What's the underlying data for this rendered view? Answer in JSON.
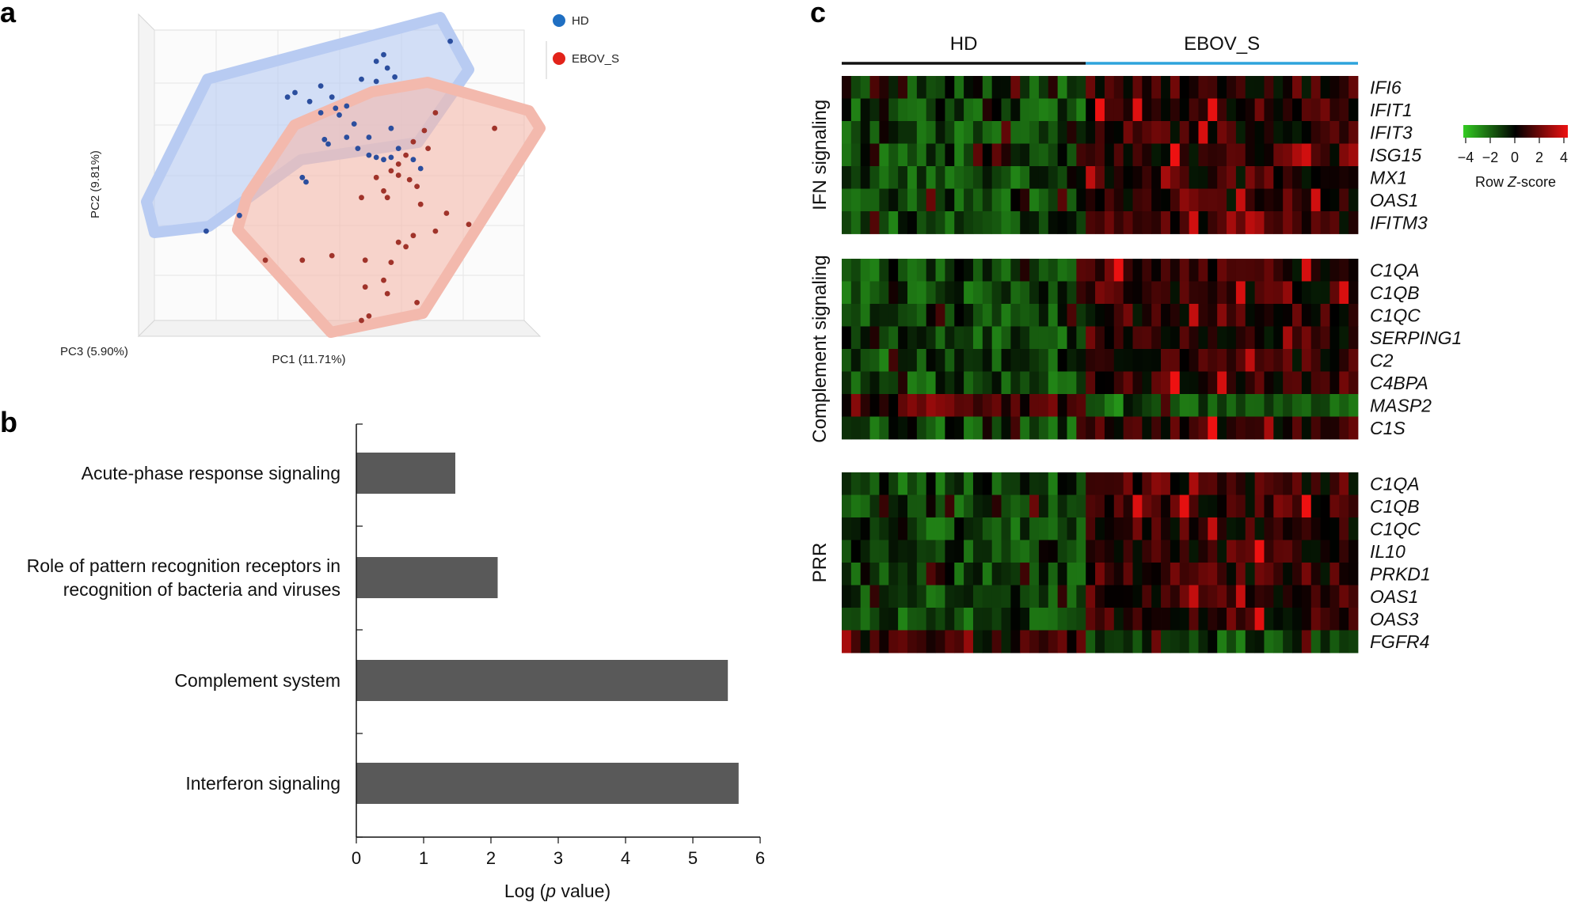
{
  "panel_labels": {
    "a": "a",
    "b": "b",
    "c": "c"
  },
  "pca": {
    "axis_pc1": "PC1 (11.71%)",
    "axis_pc2": "PC2 (9.81%)",
    "axis_pc3": "PC3 (5.90%)",
    "legend": [
      {
        "label": "HD",
        "color": "#1f6fc2"
      },
      {
        "label": "EBOV_S",
        "color": "#e2231a"
      }
    ],
    "colors": {
      "hd_hull": "#b8cbf2",
      "ebov_hull": "#f3b9ad",
      "hd_point": "#2b4e9e",
      "ebov_point": "#a0332a"
    }
  },
  "chart_data": [
    {
      "type": "scatter",
      "title": "",
      "xlabel": "PC1 (11.71%)",
      "ylabel": "PC2 (9.81%)",
      "zlabel": "PC3 (5.90%)",
      "series": [
        {
          "name": "HD",
          "points": [
            [
              0.8,
              0.95
            ],
            [
              0.62,
              0.89
            ],
            [
              0.6,
              0.86
            ],
            [
              0.63,
              0.83
            ],
            [
              0.65,
              0.79
            ],
            [
              0.6,
              0.77
            ],
            [
              0.56,
              0.78
            ],
            [
              0.45,
              0.75
            ],
            [
              0.42,
              0.68
            ],
            [
              0.38,
              0.72
            ],
            [
              0.36,
              0.7
            ],
            [
              0.48,
              0.7
            ],
            [
              0.45,
              0.63
            ],
            [
              0.49,
              0.65
            ],
            [
              0.5,
              0.62
            ],
            [
              0.52,
              0.66
            ],
            [
              0.54,
              0.58
            ],
            [
              0.58,
              0.52
            ],
            [
              0.64,
              0.56
            ],
            [
              0.52,
              0.52
            ],
            [
              0.47,
              0.49
            ],
            [
              0.46,
              0.51
            ],
            [
              0.55,
              0.47
            ],
            [
              0.58,
              0.44
            ],
            [
              0.6,
              0.43
            ],
            [
              0.62,
              0.42
            ],
            [
              0.64,
              0.43
            ],
            [
              0.7,
              0.42
            ],
            [
              0.66,
              0.47
            ],
            [
              0.72,
              0.38
            ],
            [
              0.4,
              0.34
            ],
            [
              0.41,
              0.32
            ],
            [
              0.23,
              0.17
            ],
            [
              0.14,
              0.1
            ]
          ]
        },
        {
          "name": "EBOV_S",
          "points": [
            [
              0.92,
              0.56
            ],
            [
              0.76,
              0.63
            ],
            [
              0.73,
              0.55
            ],
            [
              0.7,
              0.5
            ],
            [
              0.74,
              0.47
            ],
            [
              0.68,
              0.44
            ],
            [
              0.66,
              0.4
            ],
            [
              0.64,
              0.37
            ],
            [
              0.66,
              0.35
            ],
            [
              0.69,
              0.33
            ],
            [
              0.71,
              0.3
            ],
            [
              0.6,
              0.34
            ],
            [
              0.62,
              0.28
            ],
            [
              0.63,
              0.25
            ],
            [
              0.56,
              0.25
            ],
            [
              0.72,
              0.22
            ],
            [
              0.79,
              0.18
            ],
            [
              0.85,
              0.13
            ],
            [
              0.76,
              0.1
            ],
            [
              0.7,
              0.08
            ],
            [
              0.66,
              0.05
            ],
            [
              0.68,
              0.03
            ],
            [
              0.57,
              -0.03
            ],
            [
              0.48,
              -0.01
            ],
            [
              0.4,
              -0.03
            ],
            [
              0.3,
              -0.03
            ],
            [
              0.64,
              -0.04
            ],
            [
              0.62,
              -0.12
            ],
            [
              0.57,
              -0.15
            ],
            [
              0.63,
              -0.18
            ],
            [
              0.71,
              -0.22
            ],
            [
              0.58,
              -0.28
            ],
            [
              0.56,
              -0.3
            ]
          ]
        }
      ]
    },
    {
      "type": "bar",
      "orientation": "horizontal",
      "categories": [
        [
          "Acute-phase response signaling"
        ],
        [
          "Role of pattern recognition receptors in",
          "recognition of bacteria and viruses"
        ],
        [
          "Complement system"
        ],
        [
          "Interferon signaling"
        ]
      ],
      "values": [
        1.47,
        2.1,
        5.52,
        5.68
      ],
      "bar_color": "#595959",
      "xlabel_pre": "Log (",
      "xlabel_italic": "p",
      "xlabel_post": " value)",
      "xlim": [
        0,
        6
      ],
      "xticks": [
        "0",
        "1",
        "2",
        "3",
        "4",
        "5",
        "6"
      ]
    },
    {
      "type": "heatmap",
      "groups": [
        {
          "label": "HD",
          "columns": 26,
          "line_color": "#111111"
        },
        {
          "label": "EBOV_S",
          "columns": 29,
          "line_color": "#2ea4dc"
        }
      ],
      "blocks": [
        {
          "label": "IFN signaling",
          "genes": [
            "IFI6",
            "IFIT1",
            "IFIT3",
            "ISG15",
            "MX1",
            "OAS1",
            "IFITM3"
          ]
        },
        {
          "label": "Complement  signaling",
          "genes": [
            "C1QA",
            "C1QB",
            "C1QC",
            "SERPING1",
            "C2",
            "C4BPA",
            "MASP2",
            "C1S"
          ]
        },
        {
          "label": "PRR",
          "genes": [
            "C1QA",
            "C1QB",
            "C1QC",
            "IL10",
            "PRKD1",
            "OAS1",
            "OAS3",
            "FGFR4"
          ]
        }
      ],
      "colorbar": {
        "ticks": [
          "−4",
          "−2",
          "0",
          "2",
          "4"
        ],
        "title_pre": "Row ",
        "title_italic": "Z",
        "title_post": "-score",
        "range": [
          -4,
          4
        ],
        "low_color": "#33cc22",
        "mid_color": "#000000",
        "high_color": "#ee1111"
      }
    }
  ]
}
